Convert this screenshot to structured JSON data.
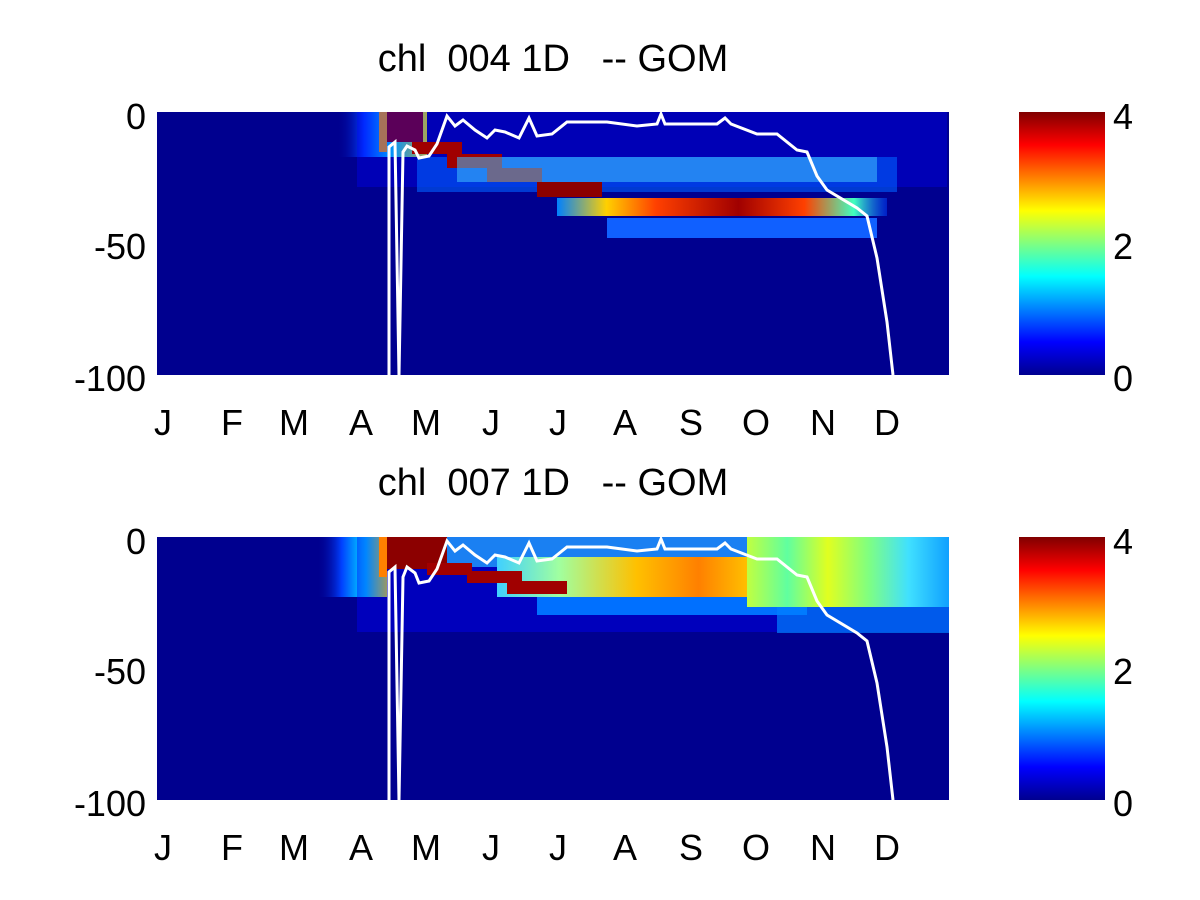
{
  "chart_data": [
    {
      "type": "heatmap",
      "title": "chl  004 1D   -- GOM",
      "x_ticks": [
        "J",
        "F",
        "M",
        "A",
        "M",
        "J",
        "J",
        "A",
        "S",
        "O",
        "N",
        "D"
      ],
      "y_ticks": [
        "0",
        "-50",
        "-100"
      ],
      "ylim": [
        -100,
        0
      ],
      "colorbar": {
        "ticks": [
          "4",
          "2",
          "0"
        ],
        "range": [
          0,
          4
        ],
        "colormap": "jet"
      },
      "overlay_line_color": "#ffffff"
    },
    {
      "type": "heatmap",
      "title": "chl  007 1D   -- GOM",
      "x_ticks": [
        "J",
        "F",
        "M",
        "A",
        "M",
        "J",
        "J",
        "A",
        "S",
        "O",
        "N",
        "D"
      ],
      "y_ticks": [
        "0",
        "-50",
        "-100"
      ],
      "ylim": [
        -100,
        0
      ],
      "colorbar": {
        "ticks": [
          "4",
          "2",
          "0"
        ],
        "range": [
          0,
          4
        ],
        "colormap": "jet"
      },
      "overlay_line_color": "#ffffff"
    }
  ]
}
